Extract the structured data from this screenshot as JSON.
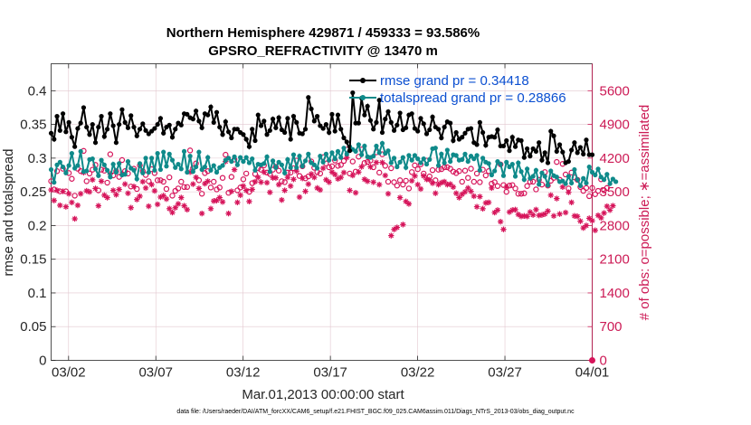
{
  "chart_data": {
    "type": "line",
    "title_line1": "Northern Hemisphere 429871 / 459333 = 93.586%",
    "title_line2": "GPSRO_REFRACTIVITY @ 13470 m",
    "xlabel": "Mar.01,2013 00:00:00 start",
    "ylabel_left": "rmse and totalspread",
    "ylabel_right": "# of obs: o=possible; ∗=assimilated",
    "xlim": [
      1,
      32
    ],
    "ylim_left": [
      0,
      0.44
    ],
    "ylim_right": [
      0,
      6160
    ],
    "x_ticks": [
      {
        "value": 2,
        "label": "03/02"
      },
      {
        "value": 7,
        "label": "03/07"
      },
      {
        "value": 12,
        "label": "03/12"
      },
      {
        "value": 17,
        "label": "03/17"
      },
      {
        "value": 22,
        "label": "03/22"
      },
      {
        "value": 27,
        "label": "03/27"
      },
      {
        "value": 32,
        "label": "04/01"
      }
    ],
    "y_ticks_left": [
      "0",
      "0.05",
      "0.1",
      "0.15",
      "0.2",
      "0.25",
      "0.3",
      "0.35",
      "0.4"
    ],
    "y_ticks_right": [
      "0",
      "700",
      "1400",
      "2100",
      "2800",
      "3500",
      "4200",
      "4900",
      "5600"
    ],
    "legend_position": "top-right",
    "footnote": "data file: /Users/raeder/DAI/ATM_forcXX/CAM6_setup/f.e21.FHIST_BGC.f09_025.CAM6assim.011/Diags_NTrS_2013-03/obs_diag_output.nc",
    "colors": {
      "rmse": "#000000",
      "spread": "#0f8a8a",
      "obs": "#d6145a",
      "legend_text": "#0b4fd1",
      "right_axis": "#cc1a55"
    },
    "series": [
      {
        "name": "rmse",
        "legend": "rmse grand pr = 0.34418",
        "values": [
          0.337,
          0.328,
          0.362,
          0.341,
          0.366,
          0.339,
          0.353,
          0.331,
          0.317,
          0.344,
          0.352,
          0.375,
          0.346,
          0.335,
          0.35,
          0.323,
          0.346,
          0.362,
          0.332,
          0.343,
          0.366,
          0.348,
          0.323,
          0.35,
          0.372,
          0.353,
          0.345,
          0.363,
          0.346,
          0.333,
          0.343,
          0.351,
          0.341,
          0.336,
          0.34,
          0.344,
          0.35,
          0.359,
          0.337,
          0.346,
          0.349,
          0.331,
          0.343,
          0.352,
          0.349,
          0.366,
          0.365,
          0.36,
          0.358,
          0.37,
          0.355,
          0.345,
          0.366,
          0.364,
          0.376,
          0.353,
          0.368,
          0.346,
          0.335,
          0.354,
          0.339,
          0.33,
          0.343,
          0.343,
          0.338,
          0.335,
          0.328,
          0.317,
          0.343,
          0.326,
          0.364,
          0.348,
          0.355,
          0.335,
          0.341,
          0.358,
          0.345,
          0.36,
          0.342,
          0.338,
          0.359,
          0.328,
          0.362,
          0.353,
          0.337,
          0.336,
          0.343,
          0.39,
          0.373,
          0.355,
          0.362,
          0.348,
          0.344,
          0.35,
          0.338,
          0.365,
          0.34,
          0.364,
          0.343,
          0.33,
          0.324,
          0.311,
          0.397,
          0.352,
          0.352,
          0.389,
          0.364,
          0.377,
          0.356,
          0.343,
          0.353,
          0.386,
          0.338,
          0.358,
          0.369,
          0.353,
          0.341,
          0.349,
          0.367,
          0.342,
          0.345,
          0.364,
          0.366,
          0.344,
          0.34,
          0.359,
          0.351,
          0.336,
          0.342,
          0.361,
          0.346,
          0.343,
          0.33,
          0.346,
          0.354,
          0.352,
          0.326,
          0.338,
          0.328,
          0.331,
          0.337,
          0.343,
          0.344,
          0.323,
          0.32,
          0.353,
          0.338,
          0.319,
          0.331,
          0.332,
          0.331,
          0.342,
          0.318,
          0.318,
          0.326,
          0.311,
          0.331,
          0.317,
          0.327,
          0.326,
          0.301,
          0.314,
          0.303,
          0.314,
          0.31,
          0.323,
          0.297,
          0.308,
          0.293,
          0.34,
          0.333,
          0.31,
          0.32,
          0.309,
          0.293,
          0.295,
          0.312,
          0.323,
          0.308,
          0.316,
          0.306,
          0.327,
          0.305,
          0.305
        ]
      },
      {
        "name": "totalspread",
        "legend": "totalspread grand pr = 0.28866",
        "values": [
          0.283,
          0.264,
          0.29,
          0.294,
          0.287,
          0.278,
          0.289,
          0.307,
          0.285,
          0.289,
          0.31,
          0.28,
          0.281,
          0.298,
          0.299,
          0.284,
          0.274,
          0.297,
          0.29,
          0.282,
          0.272,
          0.291,
          0.279,
          0.292,
          0.275,
          0.276,
          0.295,
          0.285,
          0.282,
          0.269,
          0.292,
          0.278,
          0.3,
          0.279,
          0.3,
          0.282,
          0.307,
          0.283,
          0.309,
          0.288,
          0.306,
          0.297,
          0.286,
          0.291,
          0.284,
          0.31,
          0.279,
          0.303,
          0.28,
          0.287,
          0.309,
          0.283,
          0.287,
          0.301,
          0.282,
          0.289,
          0.279,
          0.286,
          0.289,
          0.297,
          0.3,
          0.295,
          0.302,
          0.29,
          0.301,
          0.295,
          0.301,
          0.293,
          0.299,
          0.282,
          0.291,
          0.29,
          0.292,
          0.302,
          0.28,
          0.296,
          0.286,
          0.294,
          0.29,
          0.278,
          0.298,
          0.286,
          0.305,
          0.286,
          0.303,
          0.288,
          0.296,
          0.306,
          0.293,
          0.29,
          0.285,
          0.303,
          0.294,
          0.306,
          0.297,
          0.308,
          0.299,
          0.31,
          0.301,
          0.315,
          0.306,
          0.317,
          0.313,
          0.31,
          0.32,
          0.305,
          0.318,
          0.302,
          0.301,
          0.303,
          0.318,
          0.308,
          0.322,
          0.307,
          0.311,
          0.293,
          0.3,
          0.287,
          0.294,
          0.301,
          0.286,
          0.304,
          0.297,
          0.304,
          0.299,
          0.293,
          0.299,
          0.291,
          0.298,
          0.314,
          0.315,
          0.289,
          0.306,
          0.293,
          0.312,
          0.295,
          0.305,
          0.304,
          0.297,
          0.298,
          0.306,
          0.295,
          0.303,
          0.299,
          0.304,
          0.282,
          0.3,
          0.294,
          0.292,
          0.275,
          0.281,
          0.295,
          0.291,
          0.274,
          0.294,
          0.287,
          0.291,
          0.273,
          0.293,
          0.28,
          0.268,
          0.284,
          0.27,
          0.273,
          0.282,
          0.261,
          0.278,
          0.273,
          0.26,
          0.281,
          0.274,
          0.272,
          0.265,
          0.266,
          0.262,
          0.273,
          0.263,
          0.283,
          0.268,
          0.259,
          0.27,
          0.263,
          0.287,
          0.279,
          0.275,
          0.284,
          0.272,
          0.268,
          0.276,
          0.262,
          0.269,
          0.265
        ]
      },
      {
        "name": "obs_possible",
        "legend": "",
        "values": [
          3720,
          3550,
          3930,
          3510,
          3980,
          3510,
          3890,
          3770,
          3420,
          3980,
          3930,
          4350,
          3720,
          3880,
          3960,
          4060,
          3530,
          3960,
          3940,
          3690,
          4280,
          3840,
          3930,
          3810,
          4160,
          3930,
          3880,
          3610,
          3980,
          3560,
          4050,
          3930,
          3850,
          3720,
          3970,
          3890,
          3740,
          3740,
          3710,
          3560,
          3800,
          3420,
          3520,
          3570,
          3710,
          3600,
          3600,
          4360,
          3990,
          4090,
          3740,
          3460,
          3890,
          3930,
          3590,
          3710,
          3550,
          3590,
          3790,
          4270,
          3480,
          3810,
          4170,
          3530,
          3590,
          3760,
          3880,
          3500,
          3680,
          3870,
          3990,
          3960,
          4050,
          3900,
          3870,
          3960,
          4020,
          3940,
          3720,
          3700,
          3900,
          3900,
          3990,
          4150,
          3830,
          4030,
          3780,
          3820,
          4130,
          4000,
          3910,
          3880,
          4220,
          4090,
          4010,
          4030,
          4150,
          4040,
          4060,
          4140,
          4380,
          3880,
          4130,
          3920,
          4230,
          4380,
          4100,
          4120,
          4150,
          4010,
          4320,
          3900,
          4280,
          4040,
          3710,
          3990,
          3700,
          3630,
          3740,
          3650,
          3730,
          3570,
          3910,
          4050,
          3970,
          4070,
          3880,
          4150,
          3820,
          3950,
          3740,
          3960,
          3970,
          4010,
          4010,
          3980,
          3920,
          3890,
          3930,
          3710,
          3940,
          3790,
          3980,
          3710,
          3880,
          3700,
          3960,
          3840,
          3930,
          3670,
          3700,
          3620,
          4070,
          3640,
          3500,
          3630,
          3640,
          3570,
          3460,
          3460,
          3470,
          3620,
          3710,
          3710,
          3550,
          3750,
          3650,
          3910,
          3630,
          3730,
          3790,
          4120,
          3750,
          4080,
          3860,
          3570,
          3900,
          3800,
          3750,
          3600,
          3520,
          3580,
          3410,
          3580,
          3450,
          3520,
          3760,
          3530,
          3580
        ]
      },
      {
        "name": "obs_assimilated",
        "legend": "",
        "values": [
          3540,
          3320,
          3530,
          3220,
          3510,
          3190,
          3460,
          3280,
          2940,
          3220,
          3460,
          3900,
          3520,
          3500,
          3750,
          3570,
          3210,
          3720,
          3430,
          3380,
          3870,
          3530,
          3440,
          3550,
          3870,
          3660,
          3470,
          3170,
          3610,
          3340,
          3410,
          3710,
          3580,
          3200,
          3650,
          3520,
          3240,
          3390,
          3420,
          3350,
          3150,
          3070,
          3170,
          3250,
          3380,
          3210,
          3130,
          3910,
          3660,
          3800,
          3570,
          3050,
          3670,
          3720,
          3150,
          3310,
          3320,
          3380,
          3290,
          4130,
          3050,
          3510,
          3960,
          3280,
          3430,
          3620,
          3530,
          3300,
          3550,
          3710,
          3800,
          3700,
          3910,
          3690,
          3490,
          3790,
          3790,
          3650,
          3330,
          3530,
          3800,
          3620,
          3760,
          3930,
          3390,
          3780,
          3510,
          3660,
          3870,
          3800,
          3580,
          3540,
          3990,
          3750,
          3700,
          3910,
          3860,
          3770,
          3800,
          3900,
          4210,
          3530,
          3840,
          3480,
          3910,
          4020,
          3760,
          3720,
          4020,
          3700,
          4110,
          3650,
          4110,
          3840,
          3460,
          2590,
          2720,
          2760,
          3380,
          2820,
          3300,
          3250,
          3730,
          3830,
          3650,
          3560,
          3830,
          3760,
          3750,
          3680,
          3470,
          3650,
          3690,
          3710,
          3650,
          3660,
          3600,
          3470,
          3380,
          3450,
          3500,
          3580,
          3510,
          3410,
          3190,
          3400,
          3150,
          3270,
          3280,
          3580,
          3070,
          3120,
          2880,
          2720,
          3600,
          3080,
          3120,
          3130,
          3030,
          2990,
          3000,
          2990,
          3080,
          3020,
          3130,
          3010,
          3020,
          3040,
          3100,
          3430,
          3000,
          3360,
          3040,
          3600,
          3070,
          3490,
          3280,
          3000,
          2990,
          2890,
          2750,
          2800,
          2950,
          2900,
          2700,
          3010,
          2960,
          3060,
          3200,
          3120,
          3210
        ]
      }
    ]
  }
}
